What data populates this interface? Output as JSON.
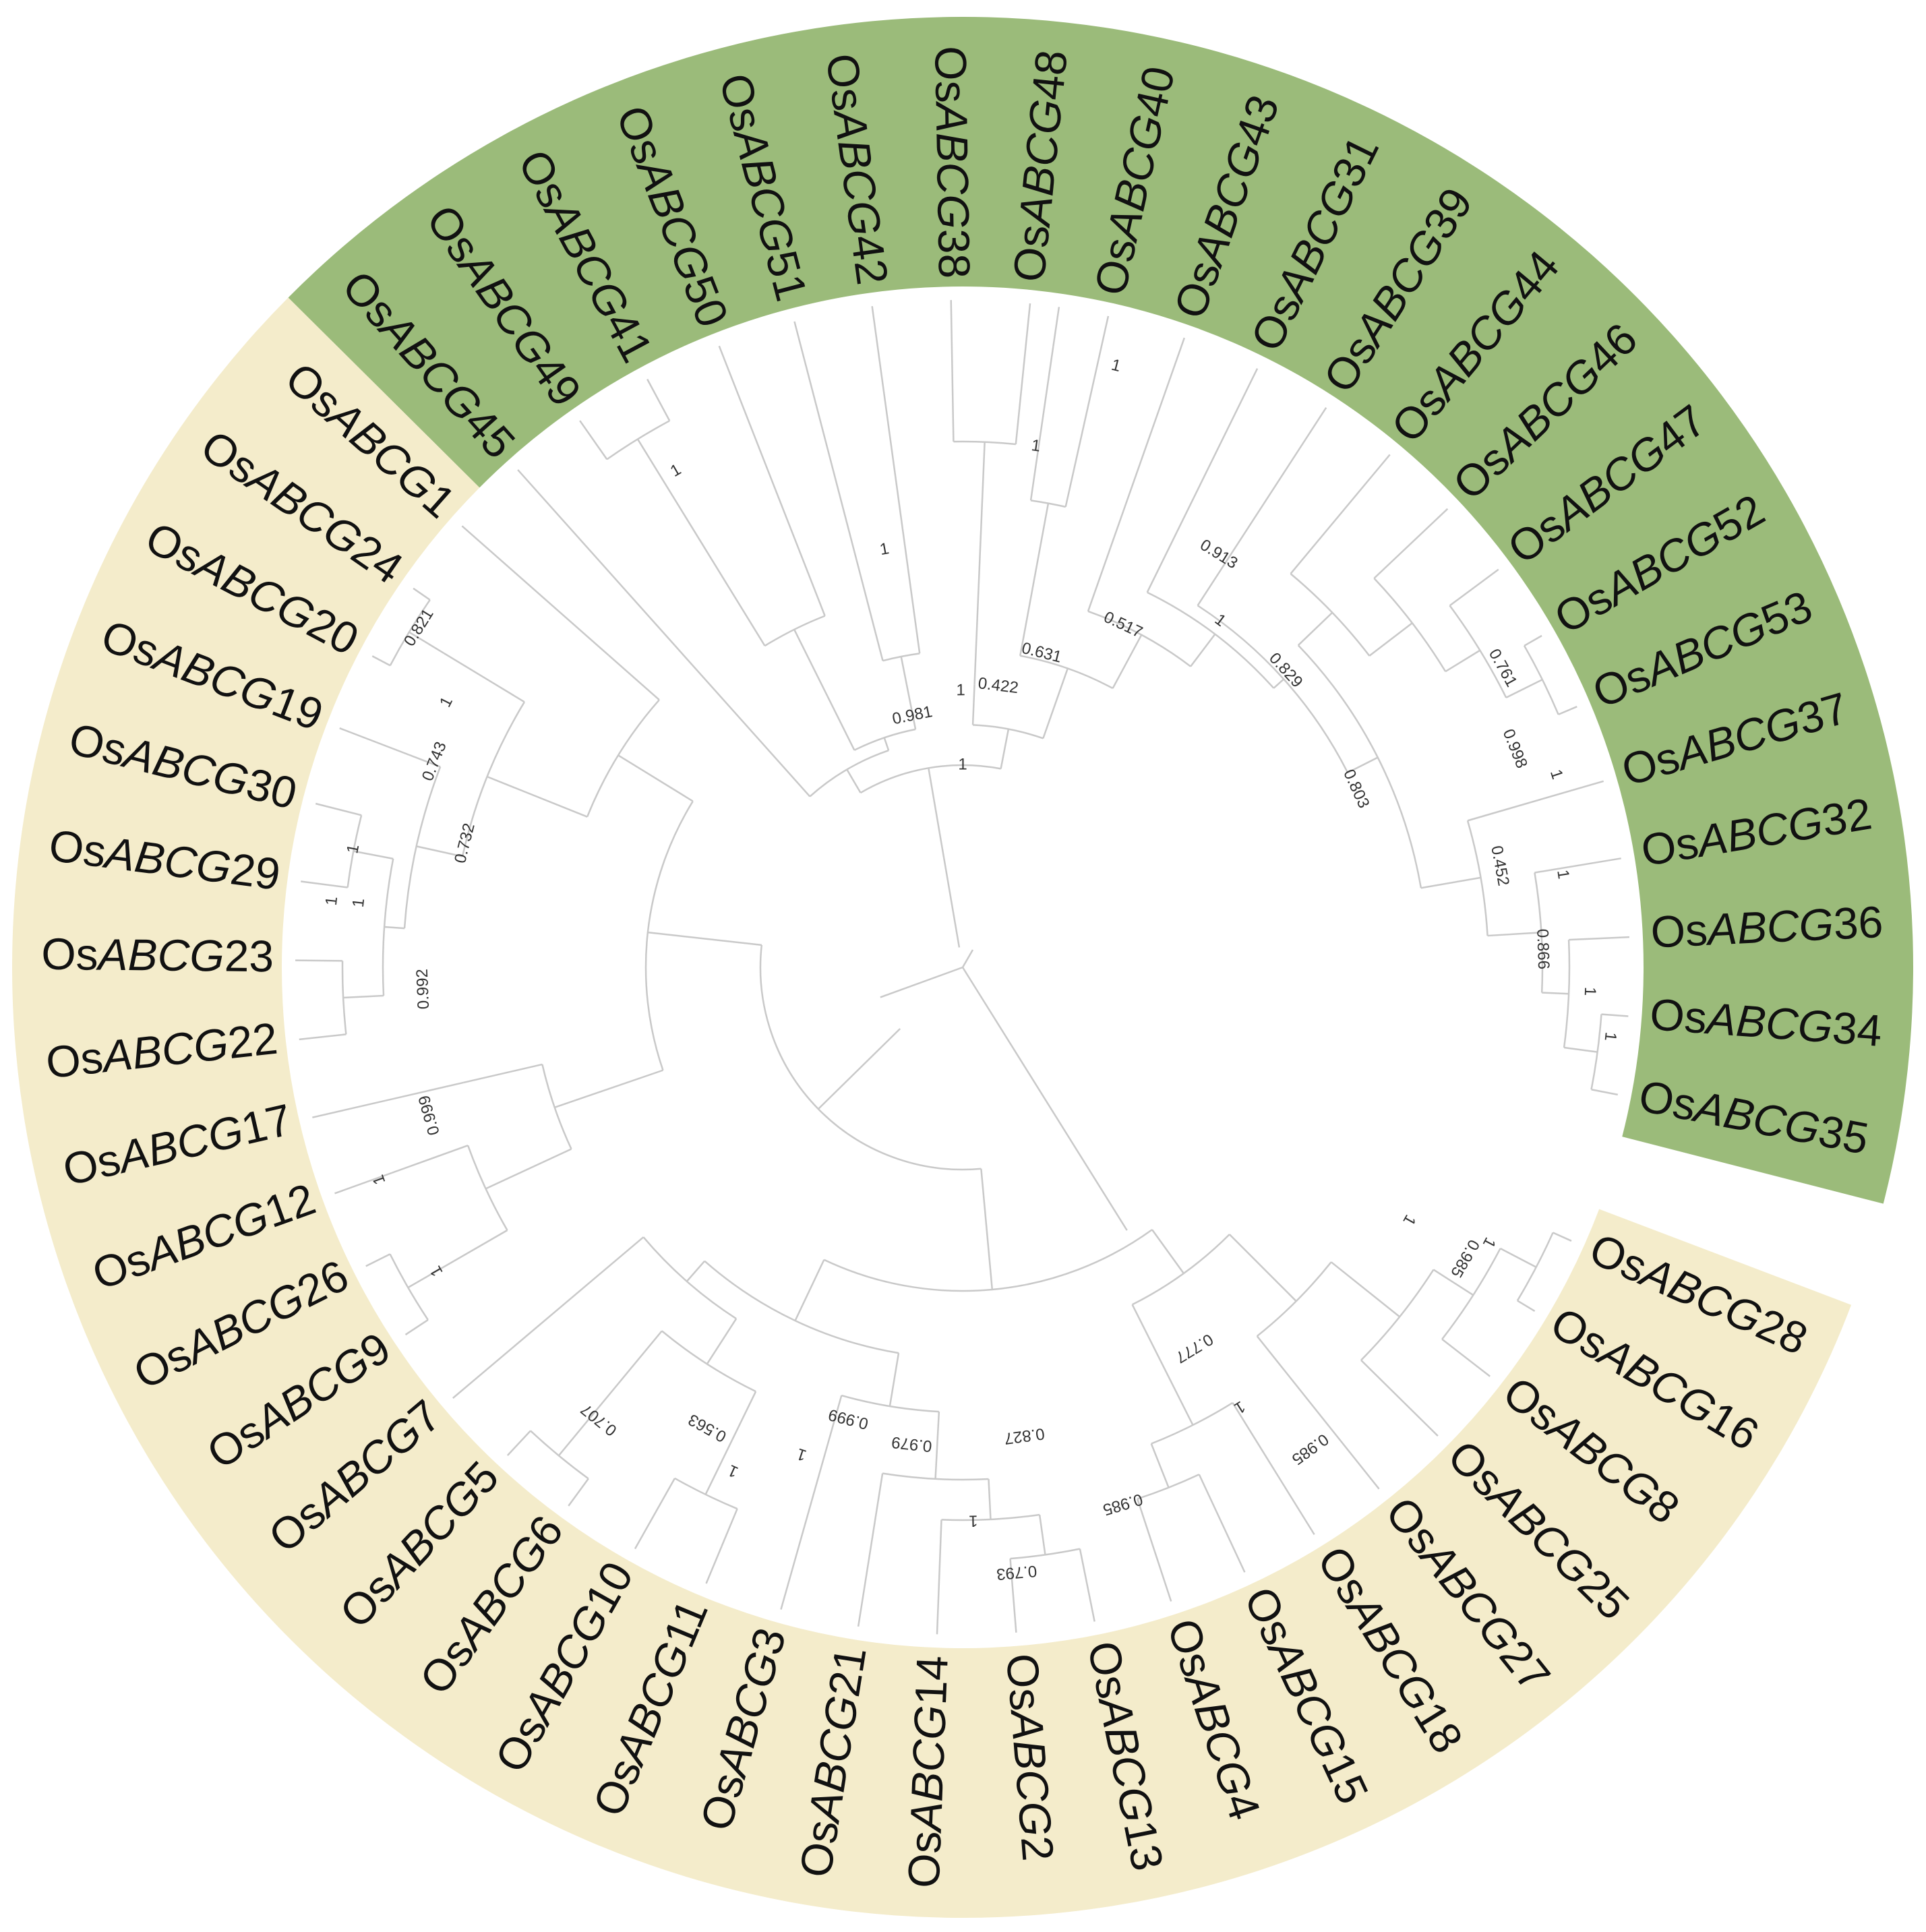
{
  "colors": {
    "clade_green": "#9bbb7a",
    "clade_yellow": "#f4eccb",
    "branch": "#c9c9c9",
    "label": "#111111",
    "support": "#333333"
  },
  "leaves": [
    {
      "label": "OsABCG35",
      "prefix": "Os",
      "italic": "ABCG",
      "num": "35",
      "group": "green",
      "angle": 11
    },
    {
      "label": "OsABCG34",
      "prefix": "Os",
      "italic": "ABCG",
      "num": "34",
      "group": "green",
      "angle": 4.2
    },
    {
      "label": "OsABCG36",
      "prefix": "Os",
      "italic": "ABCG",
      "num": "36",
      "group": "green",
      "angle": -2.6
    },
    {
      "label": "OsABCG32",
      "prefix": "Os",
      "italic": "ABCG",
      "num": "32",
      "group": "green",
      "angle": -9.4
    },
    {
      "label": "OsABCG37",
      "prefix": "Os",
      "italic": "ABCG",
      "num": "37",
      "group": "green",
      "angle": -16.2
    },
    {
      "label": "OsABCG53",
      "prefix": "Os",
      "italic": "ABCG",
      "num": "53",
      "group": "green",
      "angle": -23
    },
    {
      "label": "OsABCG52",
      "prefix": "Os",
      "italic": "ABCG",
      "num": "52",
      "group": "green",
      "angle": -29.8
    },
    {
      "label": "OsABCG47",
      "prefix": "Os",
      "italic": "ABCG",
      "num": "47",
      "group": "green",
      "angle": -36.6
    },
    {
      "label": "OsABCG46",
      "prefix": "Os",
      "italic": "ABCG",
      "num": "46",
      "group": "green",
      "angle": -43.4
    },
    {
      "label": "OsABCG44",
      "prefix": "Os",
      "italic": "ABCG",
      "num": "44",
      "group": "green",
      "angle": -50.2
    },
    {
      "label": "OsABCG39",
      "prefix": "Os",
      "italic": "ABCG",
      "num": "39",
      "group": "green",
      "angle": -57
    },
    {
      "label": "OsABCG31",
      "prefix": "Os",
      "italic": "ABCG",
      "num": "31",
      "group": "green",
      "angle": -63.8
    },
    {
      "label": "OsABCG43",
      "prefix": "Os",
      "italic": "ABCG",
      "num": "43",
      "group": "green",
      "angle": -70.6
    },
    {
      "label": "OsABCG40",
      "prefix": "Os",
      "italic": "ABCG",
      "num": "40",
      "group": "green",
      "angle": -77.4
    },
    {
      "label": "OsABCG48",
      "prefix": "Os",
      "italic": "ABCG",
      "num": "48",
      "group": "green",
      "angle": -84.2
    },
    {
      "label": "OsABCG38",
      "prefix": "Os",
      "italic": "ABCG",
      "num": "38",
      "group": "green",
      "angle": -91
    },
    {
      "label": "OsABCG42",
      "prefix": "Os",
      "italic": "ABCG",
      "num": "42",
      "group": "green",
      "angle": -97.8
    },
    {
      "label": "OsABCG51",
      "prefix": "Os",
      "italic": "ABCG",
      "num": "51",
      "group": "green",
      "angle": -104.6
    },
    {
      "label": "OsABCG50",
      "prefix": "Os",
      "italic": "ABCG",
      "num": "50",
      "group": "green",
      "angle": -111.4
    },
    {
      "label": "OsABCG41",
      "prefix": "Os",
      "italic": "ABCG",
      "num": "41",
      "group": "green",
      "angle": -118.2
    },
    {
      "label": "OsABCG49",
      "prefix": "Os",
      "italic": "ABCG",
      "num": "49",
      "group": "green",
      "angle": -125
    },
    {
      "label": "OsABCG45",
      "prefix": "Os",
      "italic": "ABCG",
      "num": "45",
      "group": "green",
      "angle": -131.8
    },
    {
      "label": "OsABCG1",
      "prefix": "Os",
      "italic": "ABCG",
      "num": "1",
      "group": "yellow",
      "angle": -138.6
    },
    {
      "label": "OsABCG24",
      "prefix": "Os",
      "italic": "ABCG",
      "num": "24",
      "group": "yellow",
      "angle": -145.4
    },
    {
      "label": "OsABCG20",
      "prefix": "Os",
      "italic": "ABCG",
      "num": "20",
      "group": "yellow",
      "angle": -152.2
    },
    {
      "label": "OsABCG19",
      "prefix": "Os",
      "italic": "ABCG",
      "num": "19",
      "group": "yellow",
      "angle": -159
    },
    {
      "label": "OsABCG30",
      "prefix": "Os",
      "italic": "ABCG",
      "num": "30",
      "group": "yellow",
      "angle": -165.8
    },
    {
      "label": "OsABCG29",
      "prefix": "Os",
      "italic": "ABCG",
      "num": "29",
      "group": "yellow",
      "angle": -172.6
    },
    {
      "label": "OsABCG23",
      "prefix": "Os",
      "italic": "ABCG",
      "num": "23",
      "group": "yellow",
      "angle": -179.4
    },
    {
      "label": "OsABCG22",
      "prefix": "Os",
      "italic": "ABCG",
      "num": "22",
      "group": "yellow",
      "angle": 173.8
    },
    {
      "label": "OsABCG17",
      "prefix": "Os",
      "italic": "ABCG",
      "num": "17",
      "group": "yellow",
      "angle": 167
    },
    {
      "label": "OsABCG12",
      "prefix": "Os",
      "italic": "ABCG",
      "num": "12",
      "group": "yellow",
      "angle": 160.2
    },
    {
      "label": "OsABCG26",
      "prefix": "Os",
      "italic": "ABCG",
      "num": "26",
      "group": "yellow",
      "angle": 153.4
    },
    {
      "label": "OsABCG9",
      "prefix": "Os",
      "italic": "ABCG",
      "num": "9",
      "group": "yellow",
      "angle": 146.6
    },
    {
      "label": "OsABCG7",
      "prefix": "Os",
      "italic": "ABCG",
      "num": "7",
      "group": "yellow",
      "angle": 139.8
    },
    {
      "label": "OsABCG5",
      "prefix": "Os",
      "italic": "ABCG",
      "num": "5",
      "group": "yellow",
      "angle": 133
    },
    {
      "label": "OsABCG6",
      "prefix": "Os",
      "italic": "ABCG",
      "num": "6",
      "group": "yellow",
      "angle": 126.2
    },
    {
      "label": "OsABCG10",
      "prefix": "Os",
      "italic": "ABCG",
      "num": "10",
      "group": "yellow",
      "angle": 119.4
    },
    {
      "label": "OsABCG11",
      "prefix": "Os",
      "italic": "ABCG",
      "num": "11",
      "group": "yellow",
      "angle": 112.6
    },
    {
      "label": "OsABCG3",
      "prefix": "Os",
      "italic": "ABCG",
      "num": "3",
      "group": "yellow",
      "angle": 105.8
    },
    {
      "label": "OsABCG21",
      "prefix": "Os",
      "italic": "ABCG",
      "num": "21",
      "group": "yellow",
      "angle": 99
    },
    {
      "label": "OsABCG14",
      "prefix": "Os",
      "italic": "ABCG",
      "num": "14",
      "group": "yellow",
      "angle": 92.2
    },
    {
      "label": "OsABCG2",
      "prefix": "Os",
      "italic": "ABCG",
      "num": "2",
      "group": "yellow",
      "angle": 85.4
    },
    {
      "label": "OsABCG13",
      "prefix": "Os",
      "italic": "ABCG",
      "num": "13",
      "group": "yellow",
      "angle": 78.6
    },
    {
      "label": "OsABCG4",
      "prefix": "Os",
      "italic": "ABCG",
      "num": "4",
      "group": "yellow",
      "angle": 71.8
    },
    {
      "label": "OsABCG15",
      "prefix": "Os",
      "italic": "ABCG",
      "num": "15",
      "group": "yellow",
      "angle": 65
    },
    {
      "label": "OsABCG18",
      "prefix": "Os",
      "italic": "ABCG",
      "num": "18",
      "group": "yellow",
      "angle": 58.2
    },
    {
      "label": "OsABCG27",
      "prefix": "Os",
      "italic": "ABCG",
      "num": "27",
      "group": "yellow",
      "angle": 51.4
    },
    {
      "label": "OsABCG25",
      "prefix": "Os",
      "italic": "ABCG",
      "num": "25",
      "group": "yellow",
      "angle": 44.6
    },
    {
      "label": "OsABCG8",
      "prefix": "Os",
      "italic": "ABCG",
      "num": "8",
      "group": "yellow",
      "angle": 37.8
    },
    {
      "label": "OsABCG16",
      "prefix": "Os",
      "italic": "ABCG",
      "num": "16",
      "group": "yellow",
      "angle": 31
    },
    {
      "label": "OsABCG28",
      "prefix": "Os",
      "italic": "ABCG",
      "num": "28",
      "group": "yellow",
      "angle": 24.2
    }
  ],
  "support_values": [
    {
      "value": "1",
      "angle": 6.1
    },
    {
      "value": "1",
      "angle": 2.2
    },
    {
      "value": "0.866",
      "angle": -1.8
    },
    {
      "value": "1",
      "angle": -8.8
    },
    {
      "value": "0.452",
      "angle": -10.7
    },
    {
      "value": "1",
      "angle": -18
    },
    {
      "value": "0.998",
      "angle": -21.6
    },
    {
      "value": "0.761",
      "angle": -29
    },
    {
      "value": "0.803",
      "angle": -24.4
    },
    {
      "value": "1",
      "angle": -53.4
    },
    {
      "value": "0.829",
      "angle": -42.6
    },
    {
      "value": "0.913",
      "angle": -58.2
    },
    {
      "value": "1",
      "angle": -75.7
    },
    {
      "value": "1",
      "angle": -82
    },
    {
      "value": "0.517",
      "angle": -64.9
    },
    {
      "value": "0.631",
      "angle": -75.9
    },
    {
      "value": "0.422",
      "angle": -82.8
    },
    {
      "value": "1",
      "angle": -90.4
    },
    {
      "value": "1",
      "angle": -100.6
    },
    {
      "value": "1",
      "angle": -120
    },
    {
      "value": "1",
      "angle": -90
    },
    {
      "value": "0.981",
      "angle": -101.3
    },
    {
      "value": "0.821",
      "angle": -148
    },
    {
      "value": "1",
      "angle": -152.8
    },
    {
      "value": "0.743",
      "angle": -158.7
    },
    {
      "value": "1",
      "angle": -169
    },
    {
      "value": "0.732",
      "angle": -166
    },
    {
      "value": "1",
      "angle": -174
    },
    {
      "value": "1",
      "angle": -173.9
    },
    {
      "value": "0.992",
      "angle": 177.7
    },
    {
      "value": "1",
      "angle": 160
    },
    {
      "value": "0.999",
      "angle": 164.5
    },
    {
      "value": "1",
      "angle": 150
    },
    {
      "value": "0.777",
      "angle": 58.7
    },
    {
      "value": "1",
      "angle": 27.6
    },
    {
      "value": "0.985",
      "angle": 30.1
    },
    {
      "value": "1",
      "angle": 29.5
    },
    {
      "value": "1",
      "angle": 57.8
    },
    {
      "value": "0.985",
      "angle": 54.2
    },
    {
      "value": "0.985",
      "angle": 73.4
    },
    {
      "value": "0.793",
      "angle": 84.9
    },
    {
      "value": "1",
      "angle": 88.9
    },
    {
      "value": "0.827",
      "angle": 82.5
    },
    {
      "value": "0.979",
      "angle": 96.1
    },
    {
      "value": "0.999",
      "angle": 104.2
    },
    {
      "value": "1",
      "angle": 108.3
    },
    {
      "value": "1",
      "angle": 114.5
    },
    {
      "value": "0.563",
      "angle": 119
    },
    {
      "value": "0.707",
      "angle": 128.8
    }
  ]
}
